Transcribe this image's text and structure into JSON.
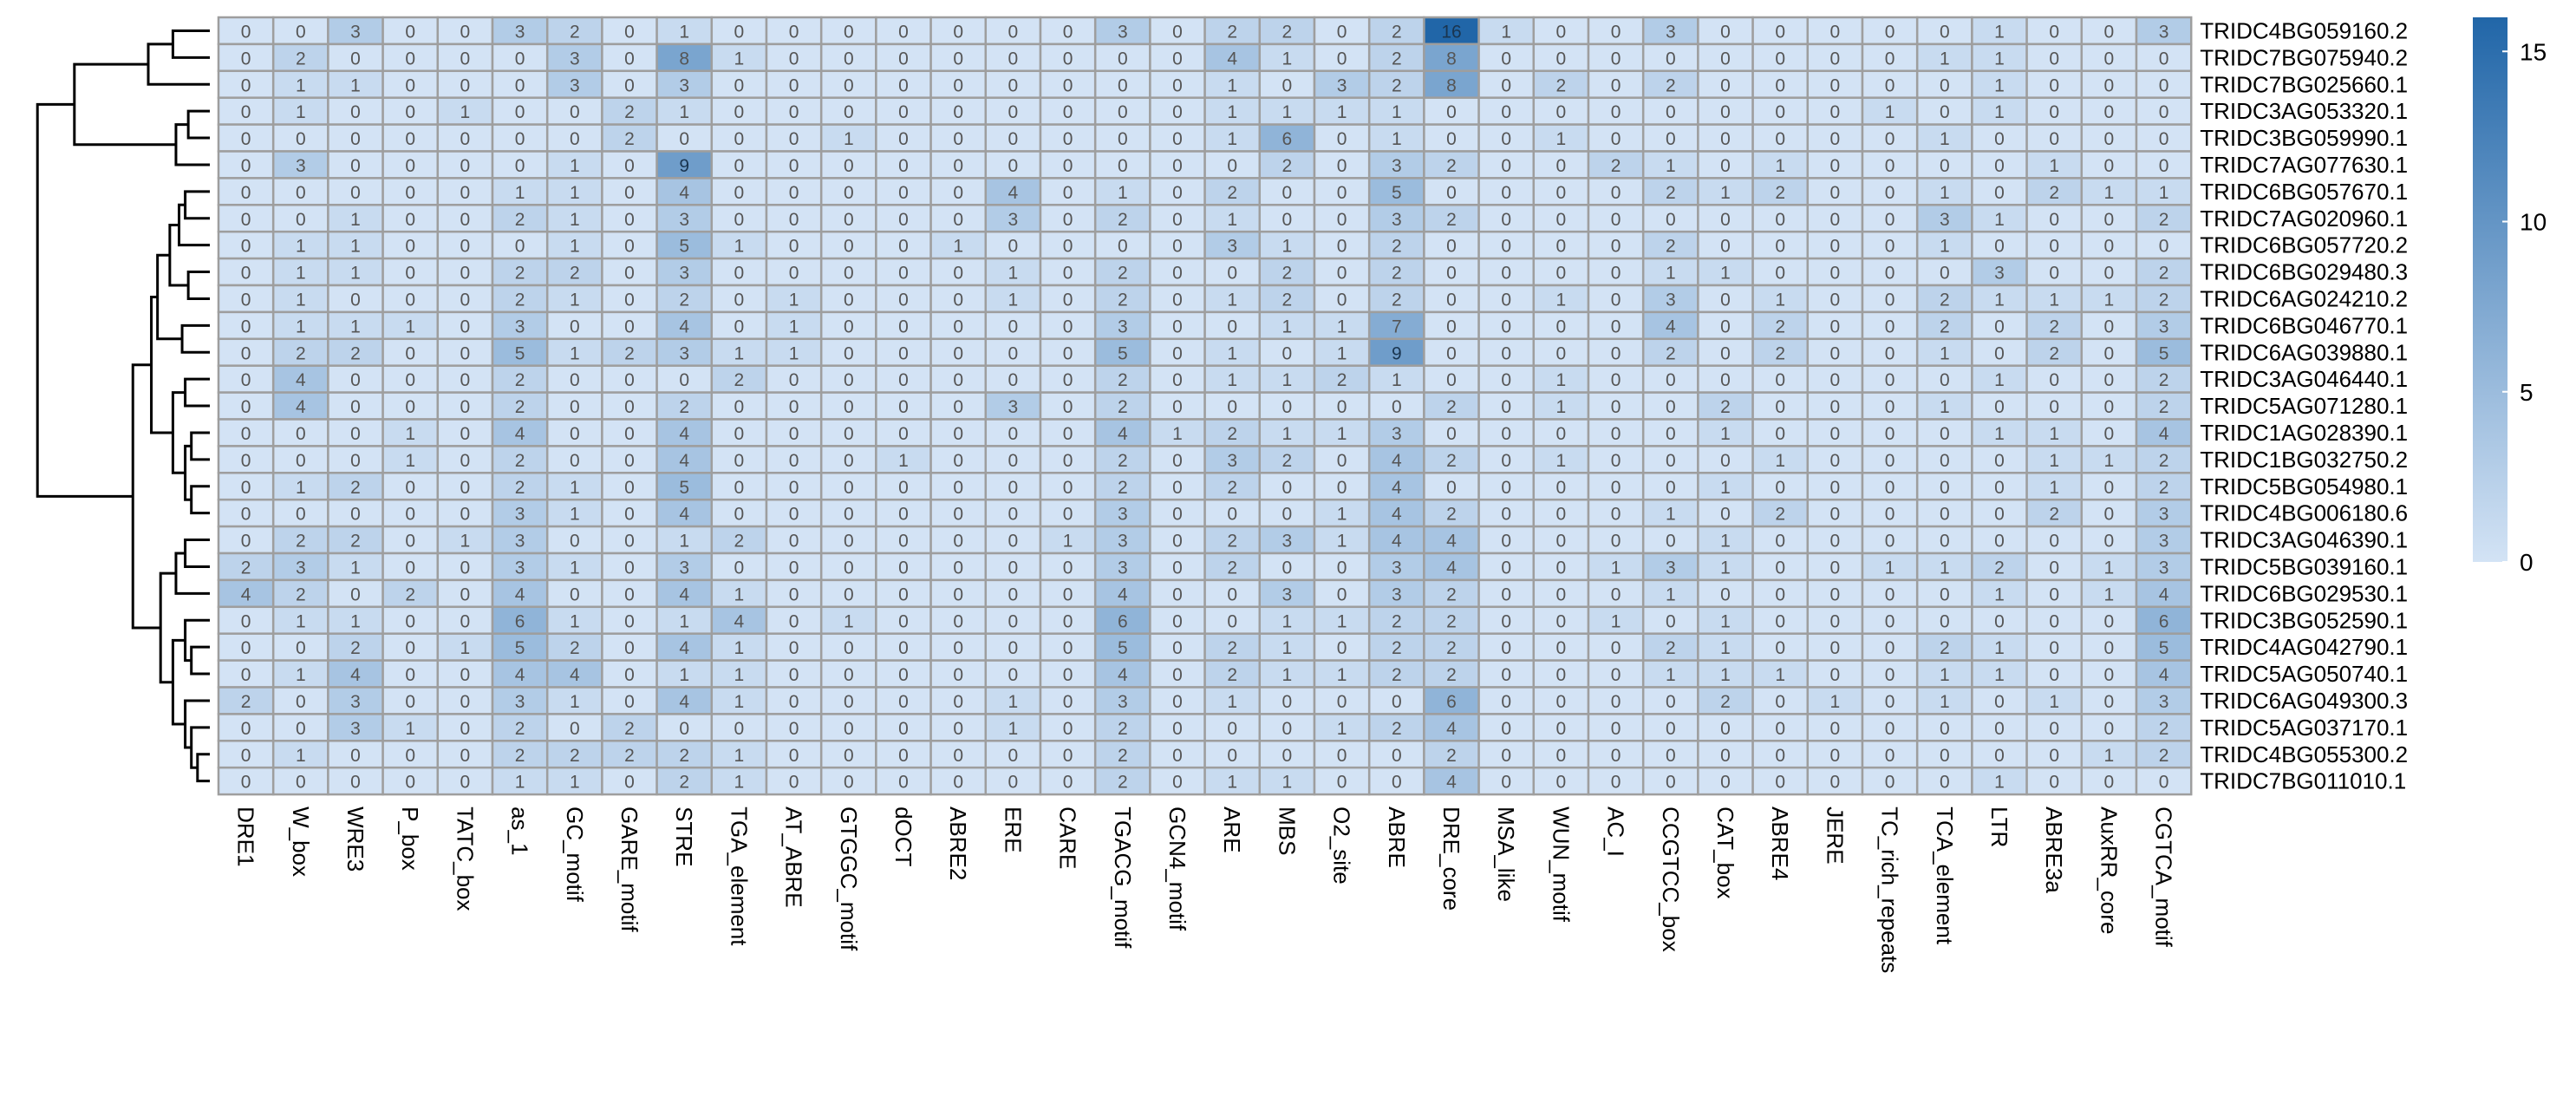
{
  "chart_data": {
    "type": "heatmap",
    "title": "",
    "xlabel": "",
    "ylabel": "",
    "columns": [
      "DRE1",
      "W_box",
      "WRE3",
      "P_box",
      "TATC_box",
      "as_1",
      "GC_motif",
      "GARE_motif",
      "STRE",
      "TGA_element",
      "AT_ABRE",
      "GTGGC_motif",
      "dOCT",
      "ABRE2",
      "ERE",
      "CARE",
      "TGACG_motif",
      "GCN4_motif",
      "ARE",
      "MBS",
      "O2_site",
      "ABRE",
      "DRE_core",
      "MSA_like",
      "WUN_motif",
      "AC_I",
      "CCGTCC_box",
      "CAT_box",
      "ABRE4",
      "JERE",
      "TC_rich_repeats",
      "TCA_element",
      "LTR",
      "ABRE3a",
      "AuxRR_core",
      "CGTCA_motif"
    ],
    "rows": [
      "TRIDC4BG059160.2",
      "TRIDC7BG075940.2",
      "TRIDC7BG025660.1",
      "TRIDC3AG053320.1",
      "TRIDC3BG059990.1",
      "TRIDC7AG077630.1",
      "TRIDC6BG057670.1",
      "TRIDC7AG020960.1",
      "TRIDC6BG057720.2",
      "TRIDC6BG029480.3",
      "TRIDC6AG024210.2",
      "TRIDC6BG046770.1",
      "TRIDC6AG039880.1",
      "TRIDC3AG046440.1",
      "TRIDC5AG071280.1",
      "TRIDC1AG028390.1",
      "TRIDC1BG032750.2",
      "TRIDC5BG054980.1",
      "TRIDC4BG006180.6",
      "TRIDC3AG046390.1",
      "TRIDC5BG039160.1",
      "TRIDC6BG029530.1",
      "TRIDC3BG052590.1",
      "TRIDC4AG042790.1",
      "TRIDC5AG050740.1",
      "TRIDC6AG049300.3",
      "TRIDC5AG037170.1",
      "TRIDC4BG055300.2",
      "TRIDC7BG011010.1"
    ],
    "values": [
      [
        0,
        0,
        3,
        0,
        0,
        3,
        2,
        0,
        1,
        0,
        0,
        0,
        0,
        0,
        0,
        0,
        3,
        0,
        2,
        2,
        0,
        2,
        16,
        1,
        0,
        0,
        3,
        0,
        0,
        0,
        0,
        0,
        1,
        0,
        0,
        3
      ],
      [
        0,
        2,
        0,
        0,
        0,
        0,
        3,
        0,
        8,
        1,
        0,
        0,
        0,
        0,
        0,
        0,
        0,
        0,
        4,
        1,
        0,
        2,
        8,
        0,
        0,
        0,
        0,
        0,
        0,
        0,
        0,
        1,
        1,
        0,
        0,
        0
      ],
      [
        0,
        1,
        1,
        0,
        0,
        0,
        3,
        0,
        3,
        0,
        0,
        0,
        0,
        0,
        0,
        0,
        0,
        0,
        1,
        0,
        3,
        2,
        8,
        0,
        2,
        0,
        2,
        0,
        0,
        0,
        0,
        0,
        1,
        0,
        0,
        0
      ],
      [
        0,
        1,
        0,
        0,
        1,
        0,
        0,
        2,
        1,
        0,
        0,
        0,
        0,
        0,
        0,
        0,
        0,
        0,
        1,
        1,
        1,
        1,
        0,
        0,
        0,
        0,
        0,
        0,
        0,
        0,
        1,
        0,
        1,
        0,
        0,
        0
      ],
      [
        0,
        0,
        0,
        0,
        0,
        0,
        0,
        2,
        0,
        0,
        0,
        1,
        0,
        0,
        0,
        0,
        0,
        0,
        1,
        6,
        0,
        1,
        0,
        0,
        1,
        0,
        0,
        0,
        0,
        0,
        0,
        1,
        0,
        0,
        0,
        0
      ],
      [
        0,
        3,
        0,
        0,
        0,
        0,
        1,
        0,
        9,
        0,
        0,
        0,
        0,
        0,
        0,
        0,
        0,
        0,
        0,
        2,
        0,
        3,
        2,
        0,
        0,
        2,
        1,
        0,
        1,
        0,
        0,
        0,
        0,
        1,
        0,
        0
      ],
      [
        0,
        0,
        0,
        0,
        0,
        1,
        1,
        0,
        4,
        0,
        0,
        0,
        0,
        0,
        4,
        0,
        1,
        0,
        2,
        0,
        0,
        5,
        0,
        0,
        0,
        0,
        2,
        1,
        2,
        0,
        0,
        1,
        0,
        2,
        1,
        1
      ],
      [
        0,
        0,
        1,
        0,
        0,
        2,
        1,
        0,
        3,
        0,
        0,
        0,
        0,
        0,
        3,
        0,
        2,
        0,
        1,
        0,
        0,
        3,
        2,
        0,
        0,
        0,
        0,
        0,
        0,
        0,
        0,
        3,
        1,
        0,
        0,
        2
      ],
      [
        0,
        1,
        1,
        0,
        0,
        0,
        1,
        0,
        5,
        1,
        0,
        0,
        0,
        1,
        0,
        0,
        0,
        0,
        3,
        1,
        0,
        2,
        0,
        0,
        0,
        0,
        2,
        0,
        0,
        0,
        0,
        1,
        0,
        0,
        0,
        0
      ],
      [
        0,
        1,
        1,
        0,
        0,
        2,
        2,
        0,
        3,
        0,
        0,
        0,
        0,
        0,
        1,
        0,
        2,
        0,
        0,
        2,
        0,
        2,
        0,
        0,
        0,
        0,
        1,
        1,
        0,
        0,
        0,
        0,
        3,
        0,
        0,
        2
      ],
      [
        0,
        1,
        0,
        0,
        0,
        2,
        1,
        0,
        2,
        0,
        1,
        0,
        0,
        0,
        1,
        0,
        2,
        0,
        1,
        2,
        0,
        2,
        0,
        0,
        1,
        0,
        3,
        0,
        1,
        0,
        0,
        2,
        1,
        1,
        1,
        2
      ],
      [
        0,
        1,
        1,
        1,
        0,
        3,
        0,
        0,
        4,
        0,
        1,
        0,
        0,
        0,
        0,
        0,
        3,
        0,
        0,
        1,
        1,
        7,
        0,
        0,
        0,
        0,
        4,
        0,
        2,
        0,
        0,
        2,
        0,
        2,
        0,
        3
      ],
      [
        0,
        2,
        2,
        0,
        0,
        5,
        1,
        2,
        3,
        1,
        1,
        0,
        0,
        0,
        0,
        0,
        5,
        0,
        1,
        0,
        1,
        9,
        0,
        0,
        0,
        0,
        2,
        0,
        2,
        0,
        0,
        1,
        0,
        2,
        0,
        5
      ],
      [
        0,
        4,
        0,
        0,
        0,
        2,
        0,
        0,
        0,
        2,
        0,
        0,
        0,
        0,
        0,
        0,
        2,
        0,
        1,
        1,
        2,
        1,
        0,
        0,
        1,
        0,
        0,
        0,
        0,
        0,
        0,
        0,
        1,
        0,
        0,
        2
      ],
      [
        0,
        4,
        0,
        0,
        0,
        2,
        0,
        0,
        2,
        0,
        0,
        0,
        0,
        0,
        3,
        0,
        2,
        0,
        0,
        0,
        0,
        0,
        2,
        0,
        1,
        0,
        0,
        2,
        0,
        0,
        0,
        1,
        0,
        0,
        0,
        2
      ],
      [
        0,
        0,
        0,
        1,
        0,
        4,
        0,
        0,
        4,
        0,
        0,
        0,
        0,
        0,
        0,
        0,
        4,
        1,
        2,
        1,
        1,
        3,
        0,
        0,
        0,
        0,
        0,
        1,
        0,
        0,
        0,
        0,
        1,
        1,
        0,
        4
      ],
      [
        0,
        0,
        0,
        1,
        0,
        2,
        0,
        0,
        4,
        0,
        0,
        0,
        1,
        0,
        0,
        0,
        2,
        0,
        3,
        2,
        0,
        4,
        2,
        0,
        1,
        0,
        0,
        0,
        1,
        0,
        0,
        0,
        0,
        1,
        1,
        2
      ],
      [
        0,
        1,
        2,
        0,
        0,
        2,
        1,
        0,
        5,
        0,
        0,
        0,
        0,
        0,
        0,
        0,
        2,
        0,
        2,
        0,
        0,
        4,
        0,
        0,
        0,
        0,
        0,
        1,
        0,
        0,
        0,
        0,
        0,
        1,
        0,
        2
      ],
      [
        0,
        0,
        0,
        0,
        0,
        3,
        1,
        0,
        4,
        0,
        0,
        0,
        0,
        0,
        0,
        0,
        3,
        0,
        0,
        0,
        1,
        4,
        2,
        0,
        0,
        0,
        1,
        0,
        2,
        0,
        0,
        0,
        0,
        2,
        0,
        3
      ],
      [
        0,
        2,
        2,
        0,
        1,
        3,
        0,
        0,
        1,
        2,
        0,
        0,
        0,
        0,
        0,
        1,
        3,
        0,
        2,
        3,
        1,
        4,
        4,
        0,
        0,
        0,
        0,
        1,
        0,
        0,
        0,
        0,
        0,
        0,
        0,
        3
      ],
      [
        2,
        3,
        1,
        0,
        0,
        3,
        1,
        0,
        3,
        0,
        0,
        0,
        0,
        0,
        0,
        0,
        3,
        0,
        2,
        0,
        0,
        3,
        4,
        0,
        0,
        1,
        3,
        1,
        0,
        0,
        1,
        1,
        2,
        0,
        1,
        3
      ],
      [
        4,
        2,
        0,
        2,
        0,
        4,
        0,
        0,
        4,
        1,
        0,
        0,
        0,
        0,
        0,
        0,
        4,
        0,
        0,
        3,
        0,
        3,
        2,
        0,
        0,
        0,
        1,
        0,
        0,
        0,
        0,
        0,
        1,
        0,
        1,
        4
      ],
      [
        0,
        1,
        1,
        0,
        0,
        6,
        1,
        0,
        1,
        4,
        0,
        1,
        0,
        0,
        0,
        0,
        6,
        0,
        0,
        1,
        1,
        2,
        2,
        0,
        0,
        1,
        0,
        1,
        0,
        0,
        0,
        0,
        0,
        0,
        0,
        6
      ],
      [
        0,
        0,
        2,
        0,
        1,
        5,
        2,
        0,
        4,
        1,
        0,
        0,
        0,
        0,
        0,
        0,
        5,
        0,
        2,
        1,
        0,
        2,
        2,
        0,
        0,
        0,
        2,
        1,
        0,
        0,
        0,
        2,
        1,
        0,
        0,
        5
      ],
      [
        0,
        1,
        4,
        0,
        0,
        4,
        4,
        0,
        1,
        1,
        0,
        0,
        0,
        0,
        0,
        0,
        4,
        0,
        2,
        1,
        1,
        2,
        2,
        0,
        0,
        0,
        1,
        1,
        1,
        0,
        0,
        1,
        1,
        0,
        0,
        4
      ],
      [
        2,
        0,
        3,
        0,
        0,
        3,
        1,
        0,
        4,
        1,
        0,
        0,
        0,
        0,
        1,
        0,
        3,
        0,
        1,
        0,
        0,
        0,
        6,
        0,
        0,
        0,
        0,
        2,
        0,
        1,
        0,
        1,
        0,
        1,
        0,
        3
      ],
      [
        0,
        0,
        3,
        1,
        0,
        2,
        0,
        2,
        0,
        0,
        0,
        0,
        0,
        0,
        1,
        0,
        2,
        0,
        0,
        0,
        1,
        2,
        4,
        0,
        0,
        0,
        0,
        0,
        0,
        0,
        0,
        0,
        0,
        0,
        0,
        2
      ],
      [
        0,
        1,
        0,
        0,
        0,
        2,
        2,
        2,
        2,
        1,
        0,
        0,
        0,
        0,
        0,
        0,
        2,
        0,
        0,
        0,
        0,
        0,
        2,
        0,
        0,
        0,
        0,
        0,
        0,
        0,
        0,
        0,
        0,
        0,
        1,
        2
      ],
      [
        0,
        0,
        0,
        0,
        0,
        1,
        1,
        0,
        2,
        1,
        0,
        0,
        0,
        0,
        0,
        0,
        2,
        0,
        1,
        1,
        0,
        0,
        4,
        0,
        0,
        0,
        0,
        0,
        0,
        0,
        0,
        0,
        1,
        0,
        0,
        0
      ]
    ],
    "colorbar": {
      "ticks": [
        0,
        5,
        10,
        15
      ],
      "range": [
        0,
        16
      ],
      "color_low": "#d3e3f5",
      "color_high": "#2166a8"
    },
    "cell_border_color": "#9e9e9e",
    "dendrogram": "rows"
  }
}
